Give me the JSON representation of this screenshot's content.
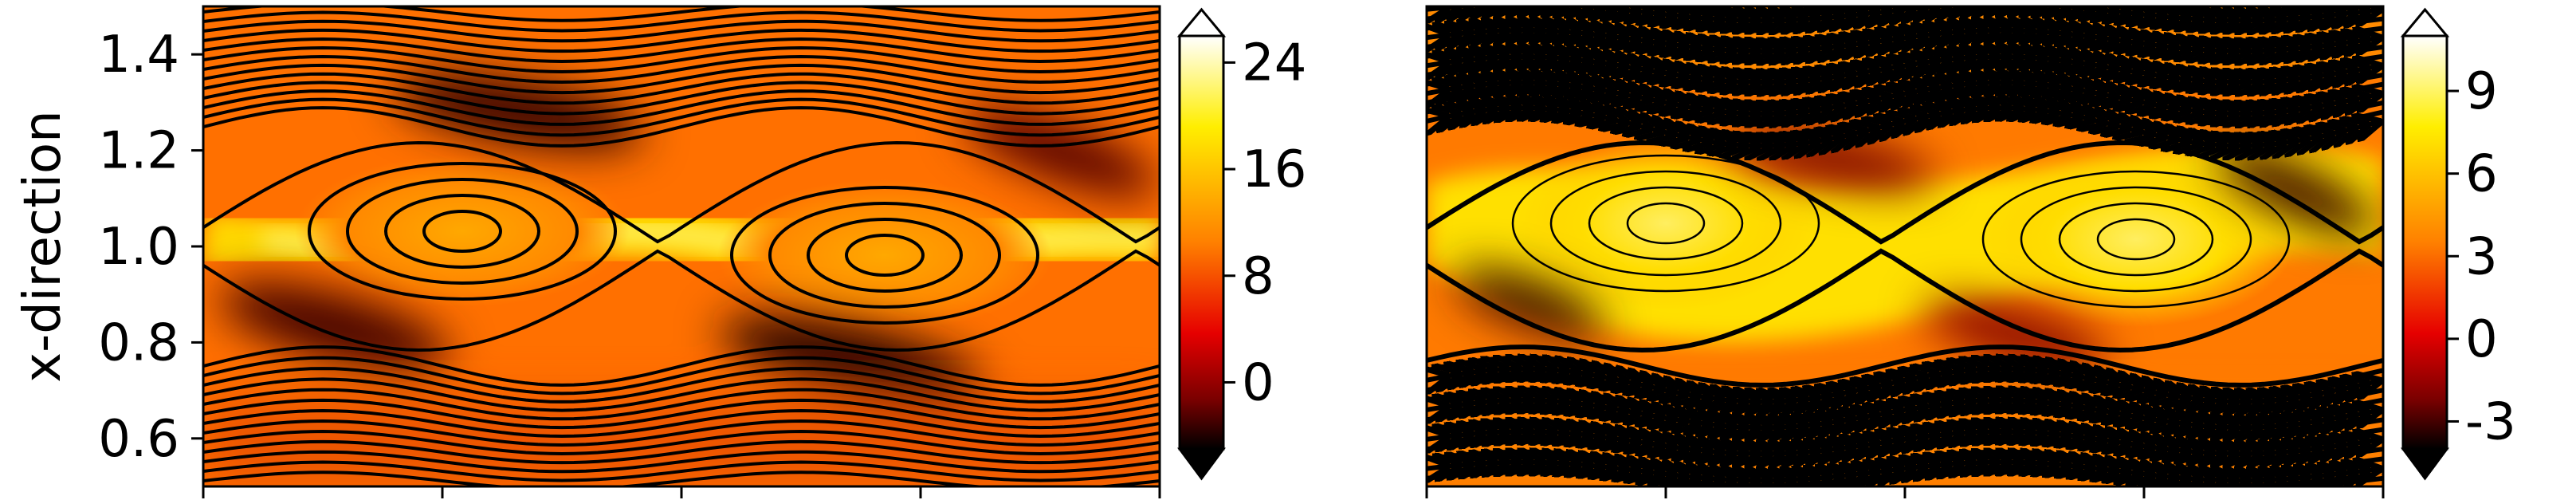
{
  "chart_data": [
    {
      "type": "heatmap",
      "panel": "left",
      "ylabel": "x-direction",
      "ylim": [
        0.5,
        1.5
      ],
      "yticks": [
        "0.6",
        "0.8",
        "1.0",
        "1.2",
        "1.4"
      ],
      "xtick_count": 5,
      "colorbar": {
        "min": -5,
        "max": 26,
        "ticks": [
          "0",
          "8",
          "16",
          "24"
        ],
        "extend": "both"
      },
      "overlay": "streamlines (closed vortex contours)",
      "colors": {
        "dark": "#000000",
        "red": "#cc0000",
        "orange": "#ff7a00",
        "yellow": "#ffee00",
        "white": "#ffffff"
      }
    },
    {
      "type": "heatmap",
      "panel": "right",
      "ylim": [
        0.5,
        1.5
      ],
      "xtick_count": 5,
      "colorbar": {
        "min": -4,
        "max": 11,
        "ticks": [
          "-3",
          "0",
          "3",
          "6",
          "9"
        ],
        "extend": "both"
      },
      "overlay": "streamlines with arrows"
    }
  ]
}
